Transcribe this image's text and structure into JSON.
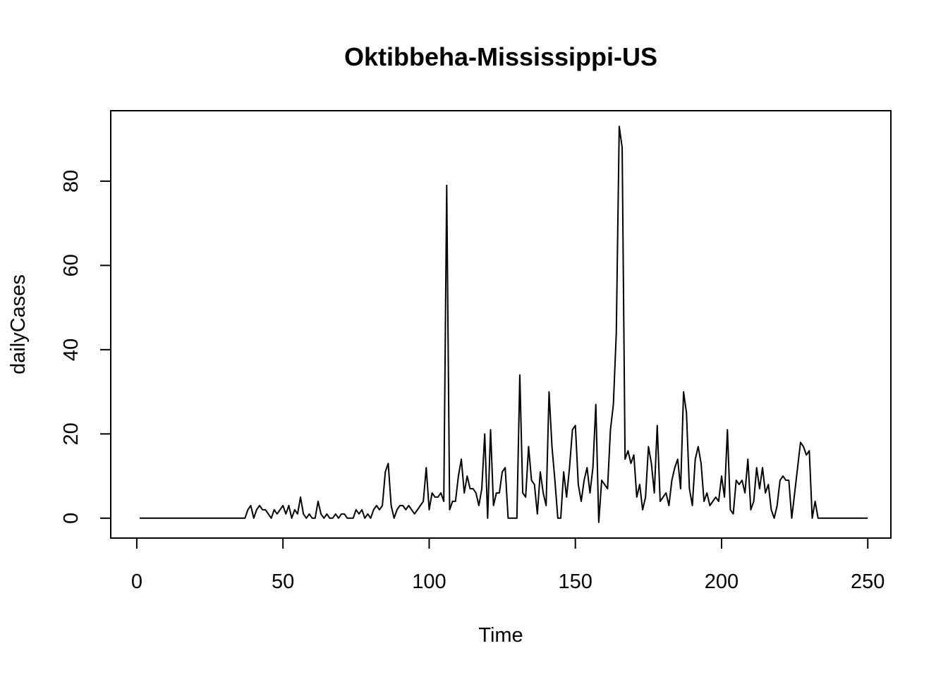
{
  "chart_data": {
    "type": "line",
    "title": "Oktibbeha-Mississippi-US",
    "xlabel": "Time",
    "ylabel": "dailyCases",
    "xlim": [
      -8.9,
      257.9
    ],
    "ylim": [
      -4.72,
      96.72
    ],
    "x_ticks": [
      0,
      50,
      100,
      150,
      200,
      250
    ],
    "y_ticks": [
      0,
      20,
      40,
      60,
      80
    ],
    "grid": false,
    "legend": "none",
    "line_color": "#000000",
    "x_start": 1,
    "values": [
      0,
      0,
      0,
      0,
      0,
      0,
      0,
      0,
      0,
      0,
      0,
      0,
      0,
      0,
      0,
      0,
      0,
      0,
      0,
      0,
      0,
      0,
      0,
      0,
      0,
      0,
      0,
      0,
      0,
      0,
      0,
      0,
      0,
      0,
      0,
      0,
      0,
      2,
      3,
      0,
      2,
      3,
      2,
      2,
      1,
      0,
      2,
      1,
      2,
      3,
      1,
      3,
      0,
      2,
      1,
      5,
      1,
      0,
      1,
      0,
      0,
      4,
      1,
      0,
      1,
      0,
      0,
      1,
      0,
      1,
      1,
      0,
      0,
      0,
      2,
      1,
      2,
      0,
      1,
      0,
      2,
      3,
      2,
      3,
      11,
      13,
      3,
      0,
      2,
      3,
      3,
      2,
      3,
      2,
      1,
      2,
      3,
      4,
      12,
      2,
      6,
      5,
      5,
      6,
      4,
      79,
      2,
      4,
      4,
      10,
      14,
      6,
      10,
      7,
      7,
      6,
      3,
      7,
      20,
      0,
      21,
      3,
      6,
      6,
      11,
      12,
      0,
      0,
      0,
      0,
      34,
      6,
      5,
      17,
      9,
      8,
      1,
      11,
      6,
      3,
      30,
      17,
      9,
      0,
      0,
      11,
      5,
      12,
      21,
      22,
      8,
      4,
      9,
      12,
      6,
      12,
      27,
      -1,
      9,
      8,
      7,
      21,
      27,
      44,
      93,
      88,
      14,
      16,
      13,
      15,
      5,
      8,
      2,
      5,
      17,
      13,
      6,
      22,
      4,
      5,
      6,
      3,
      9,
      12,
      14,
      7,
      30,
      25,
      7,
      3,
      14,
      17,
      13,
      4,
      6,
      3,
      4,
      5,
      4,
      10,
      5,
      21,
      2,
      1,
      9,
      8,
      9,
      6,
      14,
      2,
      4,
      12,
      7,
      12,
      6,
      8,
      2,
      0,
      3,
      9,
      10,
      9,
      9,
      0,
      6,
      12,
      18,
      17,
      15,
      16,
      0,
      4,
      0,
      0,
      0,
      0,
      0,
      0,
      0,
      0,
      0,
      0,
      0,
      0,
      0,
      0,
      0,
      0,
      0,
      0
    ]
  }
}
